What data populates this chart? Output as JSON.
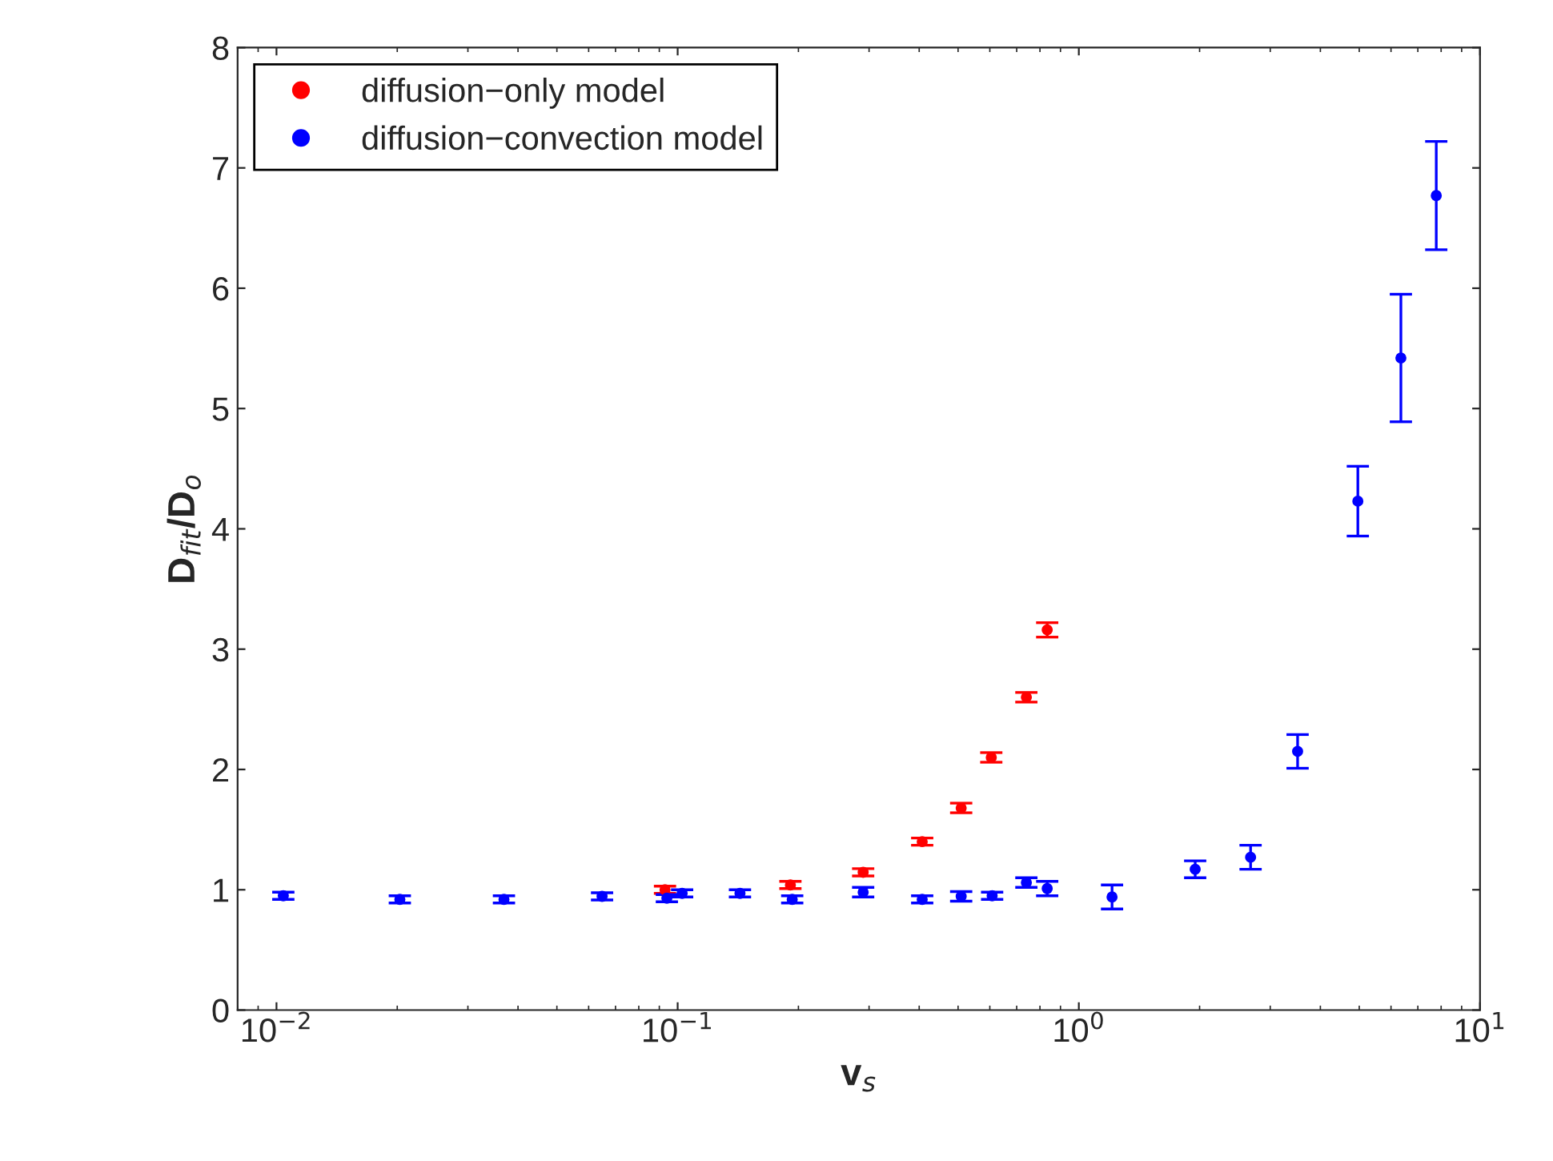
{
  "chart_data": {
    "type": "scatter",
    "xlabel": "v$_{s}$",
    "ylabel": "D$_{fit}$/D$_{o}$",
    "log": "x",
    "xlim": [
      0.008,
      10
    ],
    "xticks": [
      {
        "value": 0.01,
        "label": "10$^{−2}$"
      },
      {
        "value": 0.1,
        "label": "10$^{−1}$"
      },
      {
        "value": 1,
        "label": "10$^{0}$"
      },
      {
        "value": 10,
        "label": "10$^{1}$"
      }
    ],
    "ylim": [
      0,
      8
    ],
    "yticks": [
      0,
      1,
      2,
      3,
      4,
      5,
      6,
      7,
      8
    ],
    "grid": false,
    "legend": "top left",
    "marker": "circle",
    "series": [
      {
        "name": "diffusion−only model",
        "color": "#ff0000",
        "x": [
          0.093,
          0.191,
          0.29,
          0.407,
          0.509,
          0.605,
          0.74,
          0.834
        ],
        "values": [
          1.0,
          1.04,
          1.145,
          1.4,
          1.68,
          2.1,
          2.6,
          3.16
        ],
        "errors": [
          0.03,
          0.03,
          0.03,
          0.03,
          0.04,
          0.04,
          0.04,
          0.06
        ]
      },
      {
        "name": "diffusion−convection model",
        "color": "#0000ff",
        "x": [
          0.0104,
          0.0203,
          0.0369,
          0.0648,
          0.094,
          0.1026,
          0.143,
          0.193,
          0.29,
          0.407,
          0.509,
          0.608,
          0.74,
          0.834,
          1.21,
          1.95,
          2.68,
          3.51,
          4.96,
          6.35,
          7.78
        ],
        "values": [
          0.95,
          0.92,
          0.92,
          0.945,
          0.93,
          0.97,
          0.97,
          0.92,
          0.98,
          0.92,
          0.945,
          0.95,
          1.06,
          1.01,
          0.94,
          1.17,
          1.27,
          2.15,
          4.23,
          5.42,
          6.77
        ],
        "errors": [
          0.03,
          0.03,
          0.03,
          0.03,
          0.03,
          0.03,
          0.03,
          0.03,
          0.04,
          0.03,
          0.04,
          0.03,
          0.04,
          0.06,
          0.1,
          0.07,
          0.1,
          0.14,
          0.29,
          0.53,
          0.45
        ]
      }
    ]
  }
}
